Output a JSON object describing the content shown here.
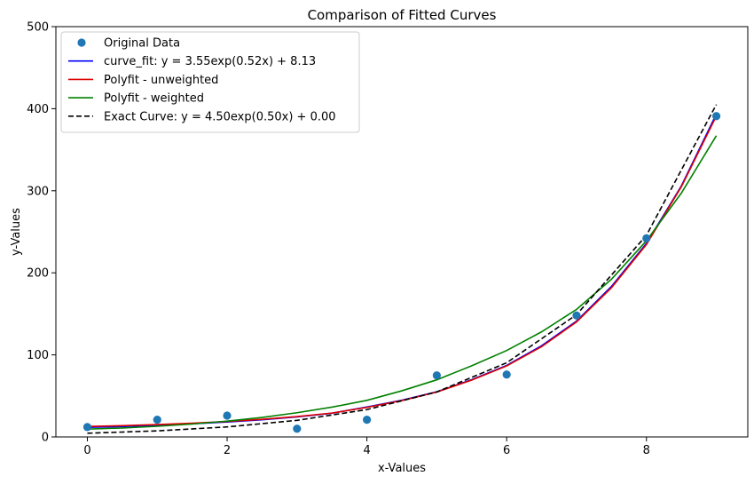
{
  "chart_data": {
    "type": "line",
    "title": "Comparison of Fitted Curves",
    "xlabel": "x-Values",
    "ylabel": "y-Values",
    "xlim": [
      -0.45,
      9.45
    ],
    "ylim": [
      0,
      500
    ],
    "xticks": [
      0,
      2,
      4,
      6,
      8
    ],
    "yticks": [
      0,
      100,
      200,
      300,
      400,
      500
    ],
    "grid": false,
    "legend_position": "top-left",
    "scatter": {
      "name": "Original Data",
      "color": "#1f77b4",
      "x": [
        0,
        1,
        2,
        3,
        4,
        5,
        6,
        7,
        8,
        9
      ],
      "y": [
        12,
        21,
        26,
        10,
        21,
        75,
        76,
        148,
        242,
        391
      ]
    },
    "series": [
      {
        "name": "curve_fit: y = 3.55exp(0.52x) + 8.13",
        "color": "#0000ff",
        "dash": "solid",
        "x": [
          0,
          0.5,
          1,
          1.5,
          2,
          2.5,
          3,
          3.5,
          4,
          4.5,
          5,
          5.5,
          6,
          6.5,
          7,
          7.5,
          8,
          8.5,
          9
        ],
        "y": [
          11.7,
          12.6,
          14.3,
          16.0,
          18.2,
          20.9,
          24.4,
          28.9,
          36.5,
          44.8,
          55.0,
          69.8,
          87.2,
          111.1,
          141.2,
          183.5,
          235.9,
          306.0,
          393.4
        ]
      },
      {
        "name": "Polyfit - unweighted",
        "color": "#dd0000",
        "dash": "solid",
        "x": [
          0,
          0.5,
          1,
          1.5,
          2,
          2.5,
          3,
          3.5,
          4,
          4.5,
          5,
          5.5,
          6,
          6.5,
          7,
          7.5,
          8,
          8.5,
          9
        ],
        "y": [
          12.8,
          13.7,
          15.1,
          16.7,
          18.8,
          21.4,
          24.8,
          29.1,
          36.0,
          44.3,
          54.7,
          69.3,
          86.5,
          110.0,
          140.2,
          181.9,
          234.6,
          305.0,
          391.1
        ]
      },
      {
        "name": "Polyfit - weighted",
        "color": "#008000",
        "dash": "solid",
        "x": [
          0,
          0.5,
          1,
          1.5,
          2,
          2.5,
          3,
          3.5,
          4,
          4.5,
          5,
          5.5,
          6,
          6.5,
          7,
          7.5,
          8,
          8.5,
          9
        ],
        "y": [
          9.5,
          10.9,
          13.0,
          15.7,
          19.3,
          23.7,
          29.5,
          36.3,
          44.6,
          56.2,
          69.6,
          86.7,
          105.3,
          128.1,
          155.4,
          192.2,
          239.1,
          297.2,
          367.1
        ]
      },
      {
        "name": "Exact Curve: y = 4.50exp(0.50x) + 0.00",
        "color": "#000000",
        "dash": "dashed",
        "x": [
          0,
          1,
          2,
          3,
          4,
          5,
          6,
          7,
          8,
          9
        ],
        "y": [
          4.5,
          7.4,
          12.2,
          20.2,
          33.3,
          54.8,
          90.4,
          149.0,
          245.7,
          405.1
        ]
      }
    ]
  }
}
